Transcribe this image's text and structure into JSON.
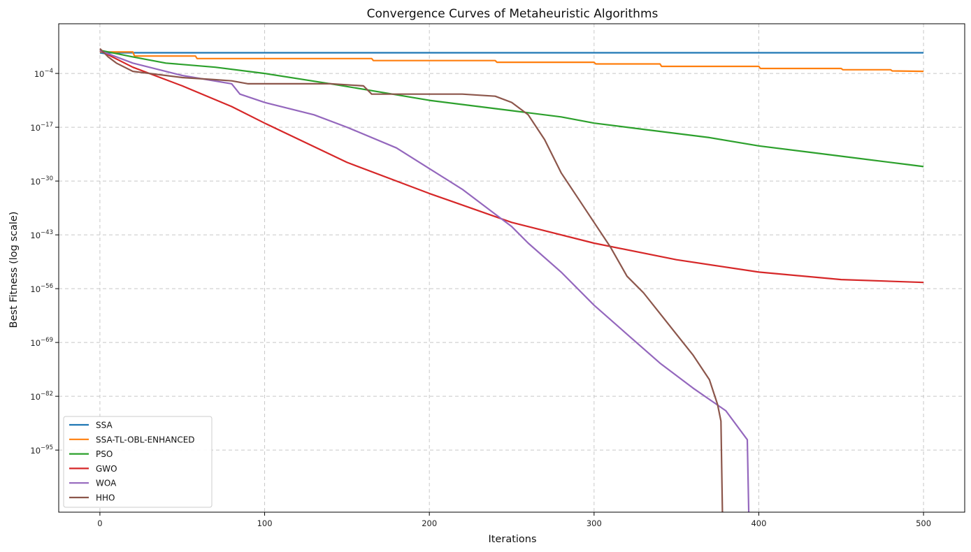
{
  "chart_data": {
    "type": "line",
    "title": "Convergence Curves of Metaheuristic Algorithms",
    "xlabel": "Iterations",
    "ylabel": "Best Fitness (log scale)",
    "yscale": "log",
    "xlim": [
      -25,
      525
    ],
    "ylim_log10": [
      -110,
      8
    ],
    "grid": true,
    "legend_position": "lower-left",
    "x_ticks": [
      0,
      100,
      200,
      300,
      400,
      500
    ],
    "y_ticks_exponent": [
      -95,
      -82,
      -69,
      -56,
      -43,
      -30,
      -17,
      -4
    ],
    "y_tick_base": "10",
    "series": [
      {
        "name": "SSA",
        "color": "#1f77b4",
        "points_log10": [
          [
            0,
            1
          ],
          [
            3,
            0.8
          ],
          [
            5,
            1
          ],
          [
            500,
            1
          ]
        ]
      },
      {
        "name": "SSA-TL-OBL-ENHANCED",
        "color": "#ff7f0e",
        "points_log10": [
          [
            0,
            1.2
          ],
          [
            20,
            1.2
          ],
          [
            21,
            0.2
          ],
          [
            58,
            0.2
          ],
          [
            59,
            -0.4
          ],
          [
            165,
            -0.4
          ],
          [
            166,
            -0.9
          ],
          [
            240,
            -0.9
          ],
          [
            241,
            -1.3
          ],
          [
            300,
            -1.3
          ],
          [
            301,
            -1.7
          ],
          [
            340,
            -1.7
          ],
          [
            341,
            -2.3
          ],
          [
            400,
            -2.3
          ],
          [
            401,
            -2.8
          ],
          [
            450,
            -2.8
          ],
          [
            451,
            -3.1
          ],
          [
            480,
            -3.1
          ],
          [
            481,
            -3.4
          ],
          [
            500,
            -3.5
          ]
        ]
      },
      {
        "name": "PSO",
        "color": "#2ca02c",
        "points_log10": [
          [
            0,
            1.6
          ],
          [
            20,
            0.0
          ],
          [
            40,
            -1.5
          ],
          [
            70,
            -2.5
          ],
          [
            100,
            -4
          ],
          [
            140,
            -6.5
          ],
          [
            170,
            -8.5
          ],
          [
            200,
            -10.5
          ],
          [
            230,
            -12
          ],
          [
            250,
            -13
          ],
          [
            280,
            -14.5
          ],
          [
            300,
            -16
          ],
          [
            330,
            -17.5
          ],
          [
            370,
            -19.5
          ],
          [
            400,
            -21.5
          ],
          [
            430,
            -23
          ],
          [
            460,
            -24.5
          ],
          [
            490,
            -26
          ],
          [
            500,
            -26.5
          ]
        ]
      },
      {
        "name": "GWO",
        "color": "#d62728",
        "points_log10": [
          [
            0,
            1.5
          ],
          [
            20,
            -2.5
          ],
          [
            50,
            -7
          ],
          [
            80,
            -12
          ],
          [
            100,
            -16
          ],
          [
            150,
            -25.5
          ],
          [
            200,
            -33
          ],
          [
            250,
            -40
          ],
          [
            300,
            -45
          ],
          [
            350,
            -49
          ],
          [
            400,
            -52
          ],
          [
            450,
            -53.8
          ],
          [
            500,
            -54.5
          ]
        ]
      },
      {
        "name": "WOA",
        "color": "#9467bd",
        "points_log10": [
          [
            0,
            1.5
          ],
          [
            20,
            -1.5
          ],
          [
            50,
            -4.5
          ],
          [
            80,
            -6.5
          ],
          [
            85,
            -9
          ],
          [
            100,
            -11
          ],
          [
            130,
            -14
          ],
          [
            150,
            -17
          ],
          [
            180,
            -22
          ],
          [
            200,
            -27
          ],
          [
            220,
            -32
          ],
          [
            240,
            -38
          ],
          [
            250,
            -41
          ],
          [
            260,
            -45
          ],
          [
            280,
            -52
          ],
          [
            300,
            -60
          ],
          [
            320,
            -67
          ],
          [
            340,
            -74
          ],
          [
            360,
            -80
          ],
          [
            380,
            -85.5
          ],
          [
            393,
            -92.5
          ],
          [
            394,
            -112
          ]
        ]
      },
      {
        "name": "HHO",
        "color": "#8c564b",
        "points_log10": [
          [
            0,
            2
          ],
          [
            5,
            0
          ],
          [
            10,
            -1.5
          ],
          [
            20,
            -3.5
          ],
          [
            50,
            -5
          ],
          [
            70,
            -5.5
          ],
          [
            80,
            -5.8
          ],
          [
            90,
            -6.5
          ],
          [
            140,
            -6.5
          ],
          [
            160,
            -7
          ],
          [
            165,
            -9
          ],
          [
            220,
            -9
          ],
          [
            240,
            -9.5
          ],
          [
            250,
            -11
          ],
          [
            260,
            -14
          ],
          [
            270,
            -20
          ],
          [
            280,
            -28
          ],
          [
            290,
            -34
          ],
          [
            300,
            -40
          ],
          [
            310,
            -46
          ],
          [
            320,
            -53
          ],
          [
            330,
            -57
          ],
          [
            340,
            -62
          ],
          [
            350,
            -67
          ],
          [
            360,
            -72
          ],
          [
            370,
            -78
          ],
          [
            375,
            -84
          ],
          [
            377,
            -88
          ],
          [
            378,
            -112
          ]
        ]
      }
    ]
  }
}
